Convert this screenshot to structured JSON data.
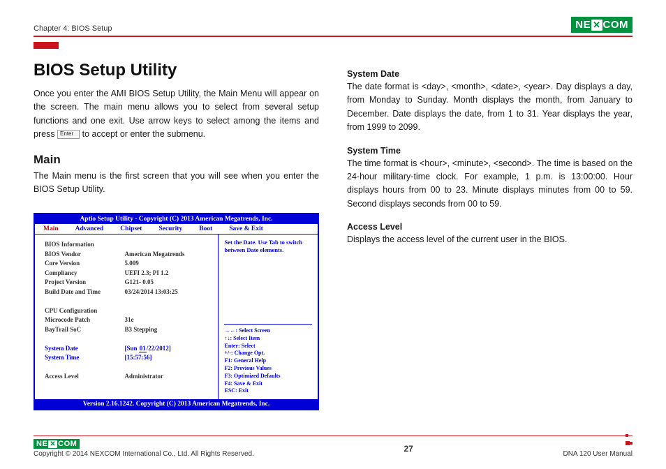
{
  "header": {
    "chapter": "Chapter 4: BIOS Setup",
    "brand_a": "NE",
    "brand_b": "COM"
  },
  "h1": "BIOS Setup Utility",
  "intro_a": "Once you enter the AMI BIOS Setup Utility, the Main Menu will appear on the screen. The main menu allows you to select from several setup functions and one exit. Use arrow keys to select among the items and press ",
  "intro_b": " to accept or enter the submenu.",
  "enter_label": "Enter",
  "h2": "Main",
  "main_text": "The Main menu is the first screen that you will see when you enter the BIOS Setup Utility.",
  "bios": {
    "title": "Aptio Setup Utility - Copyright (C) 2013 American Megatrends, Inc.",
    "menu": [
      "Main",
      "Advanced",
      "Chipset",
      "Security",
      "Boot",
      "Save & Exit"
    ],
    "section1": "BIOS Information",
    "rows1": [
      [
        "BIOS Vendor",
        "American Megatrends"
      ],
      [
        "Core Version",
        "5.009"
      ],
      [
        "Compliancy",
        "UEFI 2.3; PI 1.2"
      ],
      [
        "Project Version",
        "G121- 0.05"
      ],
      [
        "Build Date and Time",
        "03/24/2014 13:03:25"
      ]
    ],
    "section2": "CPU Configuration",
    "rows2": [
      [
        "Microcode Patch",
        "31e"
      ],
      [
        "BayTrail SoC",
        "B3 Stepping"
      ]
    ],
    "date_label": "System Date",
    "date_val_a": "[Sun ",
    "date_val_hi": "01",
    "date_val_b": "/22/2012]",
    "time_label": "System Time",
    "time_val": "[15:57:56]",
    "access_label": "Access Level",
    "access_val": "Administrator",
    "help_top": "Set the Date. Use Tab to switch between Date elements.",
    "help_lines": [
      "→←: Select Screen",
      "↑↓: Select Item",
      "Enter: Select",
      "+/-: Change Opt.",
      "F1: General Help",
      "F2: Previous Values",
      "F3: Optimized Defaults",
      "F4: Save & Exit",
      "ESC: Exit"
    ],
    "footer": "Version 2.16.1242. Copyright (C) 2013 American Megatrends, Inc."
  },
  "right": {
    "sd_h": "System Date",
    "sd_t": "The date format is <day>, <month>, <date>, <year>. Day displays a day, from Monday to Sunday. Month displays the month, from January to December. Date displays the date, from 1 to 31. Year displays the year, from 1999 to 2099.",
    "st_h": "System Time",
    "st_t": "The time format is <hour>, <minute>, <second>. The time is based on the 24-hour military-time clock. For example, 1 p.m. is 13:00:00. Hour displays hours from 00 to 23. Minute displays minutes from 00 to 59. Second displays seconds from 00 to 59.",
    "al_h": "Access Level",
    "al_t": "Displays the access level of the current user in the BIOS."
  },
  "footer": {
    "copyright": "Copyright © 2014 NEXCOM International Co., Ltd. All Rights Reserved.",
    "page": "27",
    "manual": "DNA 120 User Manual"
  }
}
